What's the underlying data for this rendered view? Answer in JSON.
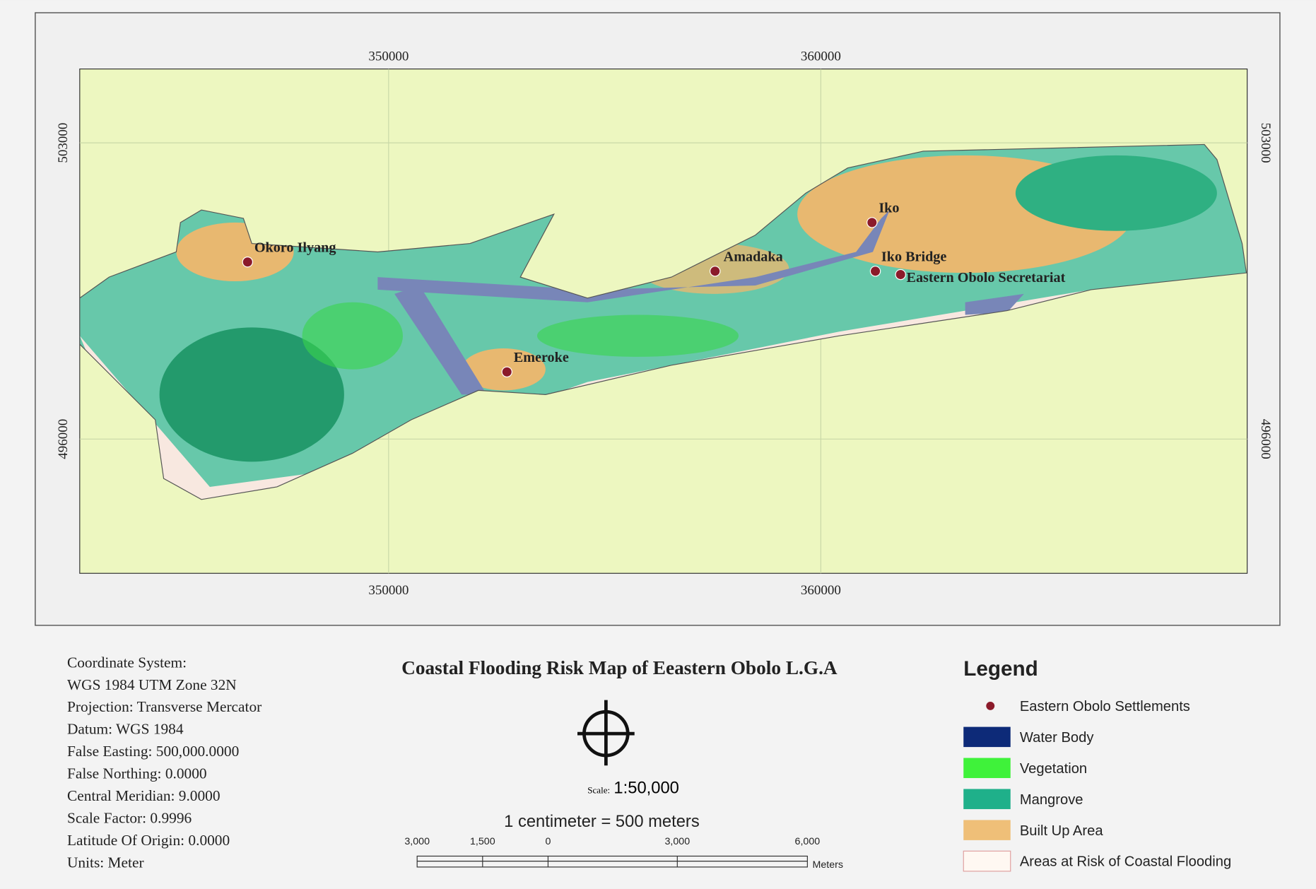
{
  "title": "Coastal Flooding Risk Map of Eeastern Obolo L.G.A",
  "grid": {
    "x_top": [
      "350000",
      "360000"
    ],
    "x_bottom": [
      "350000",
      "360000"
    ],
    "y_left": [
      "503000",
      "496000"
    ],
    "y_right": [
      "503000",
      "496000"
    ]
  },
  "settlements": [
    "Okoro Ilyang",
    "Amadaka",
    "Iko",
    "Iko Bridge",
    "Eastern Obolo Secretariat",
    "Emeroke"
  ],
  "coordinate_system": [
    "Coordinate System:",
    "WGS 1984 UTM Zone 32N",
    "Projection: Transverse Mercator",
    "Datum: WGS 1984",
    "False Easting: 500,000.0000",
    "False Northing: 0.0000",
    "Central Meridian: 9.0000",
    "Scale Factor: 0.9996",
    "Latitude Of Origin: 0.0000",
    "Units: Meter"
  ],
  "legend": {
    "title": "Legend",
    "items": [
      "Eastern Obolo Settlements",
      "Water Body",
      "Vegetation",
      "Mangrove",
      "Built Up Area",
      "Areas at Risk of Coastal Flooding"
    ]
  },
  "scale": {
    "prefix": "Scale:",
    "ratio": "1:50,000",
    "equivalence": "1 centimeter = 500 meters",
    "bar_labels": [
      "3,000",
      "1,500",
      "0",
      "3,000",
      "6,000"
    ],
    "unit": "Meters"
  }
}
